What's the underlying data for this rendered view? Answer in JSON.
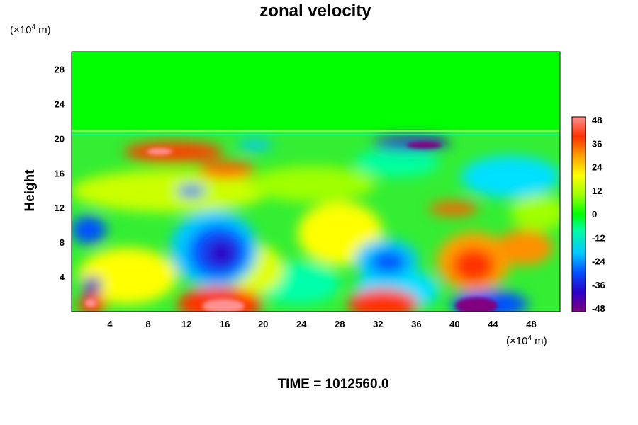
{
  "chart_data": {
    "type": "heatmap",
    "title": "zonal velocity",
    "x_unit": {
      "prefix": "(×10",
      "exp": "4",
      "suffix": " m)"
    },
    "y_unit": {
      "prefix": "(×10",
      "exp": "4",
      "suffix": " m)"
    },
    "ylabel": "Height",
    "xlabel": "",
    "x_ticks": [
      "4",
      "8",
      "12",
      "16",
      "20",
      "24",
      "28",
      "32",
      "36",
      "40",
      "44",
      "48"
    ],
    "x_tick_values": [
      4,
      8,
      12,
      16,
      20,
      24,
      28,
      32,
      36,
      40,
      44,
      48
    ],
    "y_ticks": [
      "4",
      "8",
      "12",
      "16",
      "20",
      "24",
      "28"
    ],
    "y_tick_values": [
      4,
      8,
      12,
      16,
      20,
      24,
      28
    ],
    "xlim": [
      0,
      51
    ],
    "ylim": [
      0,
      30
    ],
    "colorbar": {
      "ticks": [
        "48",
        "36",
        "24",
        "12",
        "0",
        "-12",
        "-24",
        "-36",
        "-48"
      ],
      "tick_values": [
        48,
        36,
        24,
        12,
        0,
        -12,
        -24,
        -36,
        -48
      ],
      "range": [
        -48,
        48
      ],
      "colors": [
        "#800080",
        "#2a00c8",
        "#0050ff",
        "#00c8ff",
        "#00ffa0",
        "#00ff00",
        "#a0ff00",
        "#ffff00",
        "#ffa000",
        "#ff3000",
        "#ff9090"
      ]
    },
    "features": [
      {
        "x": 15,
        "y": 6.5,
        "value": -40
      },
      {
        "x": 33,
        "y": 5.5,
        "value": -30
      },
      {
        "x": 42,
        "y": 5.5,
        "value": 40
      },
      {
        "x": 15,
        "y": 1,
        "value": 48
      },
      {
        "x": 33,
        "y": 1,
        "value": 38
      },
      {
        "x": 42,
        "y": 0.8,
        "value": -48
      },
      {
        "x": 36,
        "y": 19.5,
        "value": -45
      },
      {
        "x": 10,
        "y": 18.5,
        "value": 38
      },
      {
        "x": 2,
        "y": 9,
        "value": -35
      },
      {
        "x": 2,
        "y": 3,
        "value": -40
      },
      {
        "x": 2,
        "y": 1,
        "value": 40
      },
      {
        "x": 46,
        "y": 8,
        "value": 30
      }
    ]
  },
  "footer": {
    "time_text": "TIME = 1012560.0"
  }
}
